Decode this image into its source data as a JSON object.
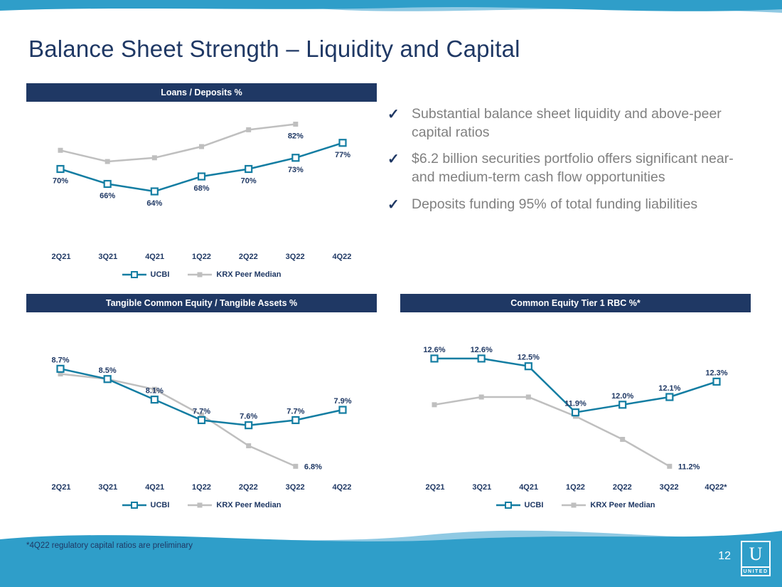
{
  "slide": {
    "title": "Balance Sheet Strength – Liquidity and Capital",
    "page_number": "12",
    "footnote": "*4Q22 regulatory capital ratios are preliminary",
    "logo": {
      "letter": "U",
      "name": "UNITED"
    }
  },
  "icons": {
    "check": "✓"
  },
  "bullets": [
    "Substantial balance sheet liquidity and above-peer capital ratios",
    "$6.2 billion securities portfolio offers significant near- and medium-term cash flow opportunities",
    "Deposits funding 95% of total funding liabilities"
  ],
  "colors": {
    "navy": "#1F3864",
    "teal": "#137DA2",
    "gray": "#BFBFBF",
    "wave_blue": "#2F9EC9",
    "wave_light": "#8FC9E3",
    "bullet_text": "#808080"
  },
  "chart_data": [
    {
      "id": "loans-deposits",
      "type": "line",
      "title": "Loans / Deposits %",
      "categories": [
        "2Q21",
        "3Q21",
        "4Q21",
        "1Q22",
        "2Q22",
        "3Q22",
        "4Q22"
      ],
      "ylim": [
        48,
        88
      ],
      "grid": false,
      "legend_position": "bottom",
      "series": [
        {
          "name": "UCBI",
          "color": "#137DA2",
          "marker": "square-open",
          "label_pos": "below",
          "values": [
            70,
            66,
            64,
            68,
            70,
            73,
            77
          ],
          "labels": [
            "70%",
            "66%",
            "64%",
            "68%",
            "70%",
            "73%",
            "77%"
          ]
        },
        {
          "name": "KRX Peer Median",
          "color": "#BFBFBF",
          "marker": "square-filled",
          "label_pos": "below",
          "values": [
            75,
            72,
            73,
            76,
            80.5,
            82,
            null
          ],
          "labels": [
            null,
            null,
            null,
            null,
            null,
            "82%",
            null
          ]
        }
      ]
    },
    {
      "id": "tce-ta",
      "type": "line",
      "title": "Tangible Common Equity / Tangible Assets %",
      "categories": [
        "2Q21",
        "3Q21",
        "4Q21",
        "1Q22",
        "2Q22",
        "3Q22",
        "4Q22"
      ],
      "ylim": [
        6.5,
        9.8
      ],
      "grid": false,
      "legend_position": "bottom",
      "series": [
        {
          "name": "UCBI",
          "color": "#137DA2",
          "marker": "square-open",
          "label_pos": "above",
          "values": [
            8.7,
            8.5,
            8.1,
            7.7,
            7.6,
            7.7,
            7.9
          ],
          "labels": [
            "8.7%",
            "8.5%",
            "8.1%",
            "7.7%",
            "7.6%",
            "7.7%",
            "7.9%"
          ]
        },
        {
          "name": "KRX Peer Median",
          "color": "#BFBFBF",
          "marker": "square-filled",
          "label_pos": "right",
          "values": [
            8.6,
            8.5,
            8.3,
            7.8,
            7.2,
            6.8,
            null
          ],
          "labels": [
            null,
            null,
            null,
            null,
            null,
            "6.8%",
            null
          ]
        }
      ]
    },
    {
      "id": "cet1",
      "type": "line",
      "title": "Common Equity Tier 1 RBC %*",
      "categories": [
        "2Q21",
        "3Q21",
        "4Q21",
        "1Q22",
        "2Q22",
        "3Q22",
        "4Q22*"
      ],
      "ylim": [
        11.0,
        13.2
      ],
      "grid": false,
      "legend_position": "bottom",
      "series": [
        {
          "name": "UCBI",
          "color": "#137DA2",
          "marker": "square-open",
          "label_pos": "above",
          "values": [
            12.6,
            12.6,
            12.5,
            11.9,
            12.0,
            12.1,
            12.3
          ],
          "labels": [
            "12.6%",
            "12.6%",
            "12.5%",
            "11.9%",
            "12.0%",
            "12.1%",
            "12.3%"
          ]
        },
        {
          "name": "KRX Peer Median",
          "color": "#BFBFBF",
          "marker": "square-filled",
          "label_pos": "right",
          "values": [
            12.0,
            12.1,
            12.1,
            11.85,
            11.55,
            11.2,
            null
          ],
          "labels": [
            null,
            null,
            null,
            null,
            null,
            "11.2%",
            null
          ]
        }
      ]
    }
  ]
}
